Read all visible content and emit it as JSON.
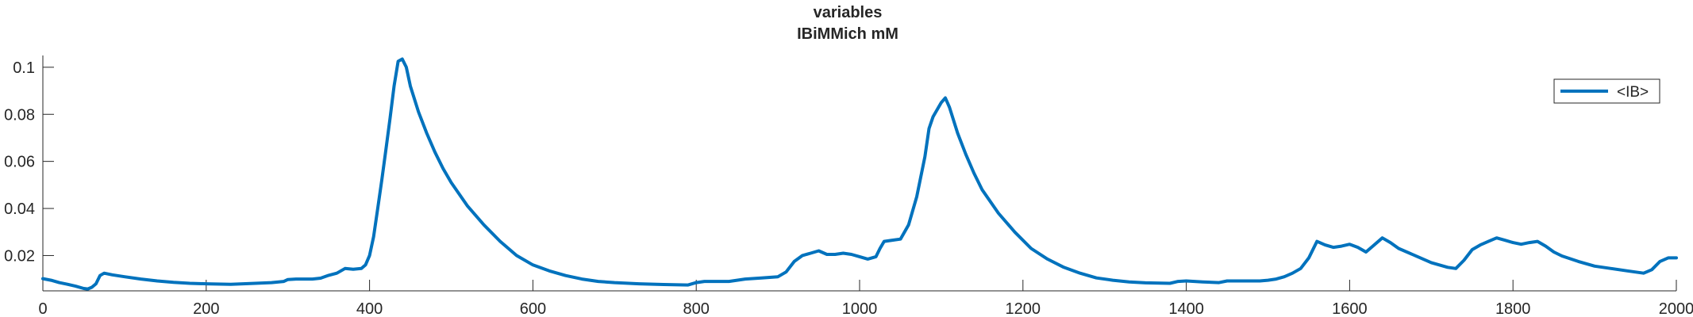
{
  "chart_data": {
    "type": "line",
    "title": "variables",
    "subtitle": "IBiMMich mM",
    "xlabel": "",
    "ylabel": "",
    "xlim": [
      0,
      2000
    ],
    "ylim": [
      0.005,
      0.105
    ],
    "xticks": [
      0,
      200,
      400,
      600,
      800,
      1000,
      1200,
      1400,
      1600,
      1800,
      2000
    ],
    "yticks": [
      0.02,
      0.04,
      0.06,
      0.08,
      0.1
    ],
    "ytick_labels": [
      "0.02",
      "0.04",
      "0.06",
      "0.08",
      "0.1"
    ],
    "grid": false,
    "legend_position": "top-right",
    "series_color": "#0072BD",
    "series": [
      {
        "name": "<IB>",
        "points": [
          [
            0,
            0.0102
          ],
          [
            10,
            0.0095
          ],
          [
            20,
            0.0085
          ],
          [
            30,
            0.0078
          ],
          [
            40,
            0.007
          ],
          [
            50,
            0.006
          ],
          [
            55,
            0.0058
          ],
          [
            60,
            0.0065
          ],
          [
            65,
            0.008
          ],
          [
            70,
            0.0115
          ],
          [
            75,
            0.0125
          ],
          [
            85,
            0.0118
          ],
          [
            100,
            0.011
          ],
          [
            120,
            0.01
          ],
          [
            140,
            0.0092
          ],
          [
            160,
            0.0086
          ],
          [
            180,
            0.0082
          ],
          [
            200,
            0.008
          ],
          [
            230,
            0.0078
          ],
          [
            260,
            0.0082
          ],
          [
            280,
            0.0085
          ],
          [
            295,
            0.009
          ],
          [
            300,
            0.0098
          ],
          [
            310,
            0.01
          ],
          [
            330,
            0.01
          ],
          [
            340,
            0.0104
          ],
          [
            350,
            0.0116
          ],
          [
            360,
            0.0125
          ],
          [
            370,
            0.0145
          ],
          [
            380,
            0.0142
          ],
          [
            390,
            0.0145
          ],
          [
            395,
            0.016
          ],
          [
            400,
            0.02
          ],
          [
            405,
            0.028
          ],
          [
            410,
            0.04
          ],
          [
            415,
            0.052
          ],
          [
            420,
            0.065
          ],
          [
            425,
            0.078
          ],
          [
            430,
            0.092
          ],
          [
            435,
            0.1025
          ],
          [
            440,
            0.1035
          ],
          [
            445,
            0.1
          ],
          [
            450,
            0.092
          ],
          [
            460,
            0.081
          ],
          [
            470,
            0.072
          ],
          [
            480,
            0.064
          ],
          [
            490,
            0.057
          ],
          [
            500,
            0.051
          ],
          [
            520,
            0.041
          ],
          [
            540,
            0.033
          ],
          [
            560,
            0.026
          ],
          [
            580,
            0.02
          ],
          [
            600,
            0.016
          ],
          [
            620,
            0.0135
          ],
          [
            640,
            0.0115
          ],
          [
            660,
            0.01
          ],
          [
            680,
            0.009
          ],
          [
            700,
            0.0085
          ],
          [
            730,
            0.008
          ],
          [
            760,
            0.0077
          ],
          [
            790,
            0.0075
          ],
          [
            800,
            0.0085
          ],
          [
            810,
            0.009
          ],
          [
            840,
            0.009
          ],
          [
            860,
            0.01
          ],
          [
            880,
            0.0105
          ],
          [
            900,
            0.011
          ],
          [
            910,
            0.013
          ],
          [
            920,
            0.0175
          ],
          [
            930,
            0.02
          ],
          [
            940,
            0.021
          ],
          [
            950,
            0.022
          ],
          [
            960,
            0.0205
          ],
          [
            970,
            0.0205
          ],
          [
            980,
            0.021
          ],
          [
            990,
            0.0205
          ],
          [
            1000,
            0.0195
          ],
          [
            1010,
            0.0185
          ],
          [
            1020,
            0.0195
          ],
          [
            1025,
            0.023
          ],
          [
            1030,
            0.026
          ],
          [
            1040,
            0.0265
          ],
          [
            1050,
            0.027
          ],
          [
            1060,
            0.033
          ],
          [
            1070,
            0.045
          ],
          [
            1080,
            0.062
          ],
          [
            1085,
            0.074
          ],
          [
            1090,
            0.079
          ],
          [
            1100,
            0.085
          ],
          [
            1105,
            0.087
          ],
          [
            1110,
            0.083
          ],
          [
            1120,
            0.072
          ],
          [
            1130,
            0.063
          ],
          [
            1140,
            0.055
          ],
          [
            1150,
            0.048
          ],
          [
            1170,
            0.038
          ],
          [
            1190,
            0.03
          ],
          [
            1210,
            0.023
          ],
          [
            1230,
            0.0185
          ],
          [
            1250,
            0.015
          ],
          [
            1270,
            0.0125
          ],
          [
            1290,
            0.0105
          ],
          [
            1310,
            0.0095
          ],
          [
            1330,
            0.0088
          ],
          [
            1350,
            0.0084
          ],
          [
            1380,
            0.0082
          ],
          [
            1390,
            0.009
          ],
          [
            1400,
            0.0092
          ],
          [
            1420,
            0.0088
          ],
          [
            1440,
            0.0085
          ],
          [
            1450,
            0.0092
          ],
          [
            1470,
            0.0092
          ],
          [
            1490,
            0.0092
          ],
          [
            1500,
            0.0095
          ],
          [
            1510,
            0.01
          ],
          [
            1520,
            0.011
          ],
          [
            1530,
            0.0125
          ],
          [
            1540,
            0.0145
          ],
          [
            1550,
            0.019
          ],
          [
            1560,
            0.026
          ],
          [
            1570,
            0.0245
          ],
          [
            1580,
            0.0235
          ],
          [
            1590,
            0.024
          ],
          [
            1600,
            0.0248
          ],
          [
            1610,
            0.0235
          ],
          [
            1620,
            0.0215
          ],
          [
            1630,
            0.0245
          ],
          [
            1640,
            0.0275
          ],
          [
            1650,
            0.0255
          ],
          [
            1660,
            0.023
          ],
          [
            1680,
            0.02
          ],
          [
            1700,
            0.017
          ],
          [
            1720,
            0.015
          ],
          [
            1730,
            0.0145
          ],
          [
            1740,
            0.018
          ],
          [
            1750,
            0.0225
          ],
          [
            1760,
            0.0245
          ],
          [
            1770,
            0.026
          ],
          [
            1780,
            0.0275
          ],
          [
            1790,
            0.0265
          ],
          [
            1800,
            0.0255
          ],
          [
            1810,
            0.0248
          ],
          [
            1820,
            0.0255
          ],
          [
            1830,
            0.026
          ],
          [
            1840,
            0.024
          ],
          [
            1850,
            0.0215
          ],
          [
            1860,
            0.0198
          ],
          [
            1880,
            0.0175
          ],
          [
            1900,
            0.0155
          ],
          [
            1920,
            0.0145
          ],
          [
            1940,
            0.0135
          ],
          [
            1960,
            0.0125
          ],
          [
            1970,
            0.014
          ],
          [
            1980,
            0.0175
          ],
          [
            1990,
            0.019
          ],
          [
            2000,
            0.019
          ]
        ]
      }
    ]
  }
}
